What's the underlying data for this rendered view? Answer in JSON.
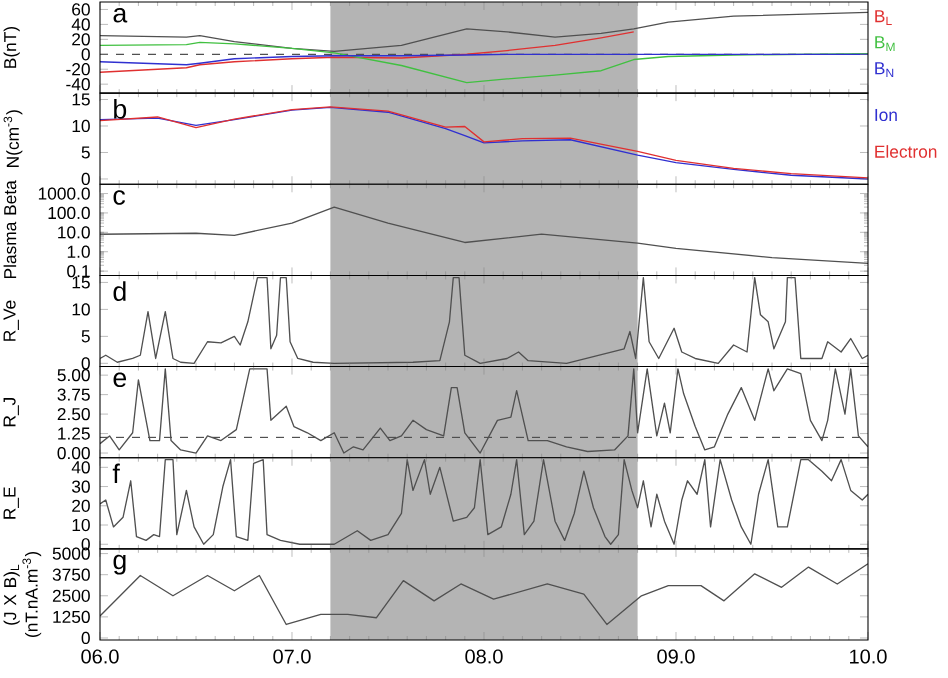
{
  "chart_data": [
    {
      "type": "line",
      "title": "a",
      "ylabel": "B(nT)",
      "legend": "right",
      "tick_labels": "y",
      "x": [
        6.0,
        6.45,
        6.52,
        6.7,
        7.0,
        7.22,
        7.57,
        7.91,
        8.12,
        8.37,
        8.61,
        8.78,
        8.96,
        9.3,
        10.0
      ],
      "series": [
        {
          "color": "#505050",
          "values": [
            25,
            23,
            25,
            17,
            8,
            4,
            12,
            34,
            30,
            23,
            28,
            34,
            43,
            51,
            56
          ]
        },
        {
          "name": "B$_{L}$",
          "color": "#e03030",
          "values": [
            -24,
            -18,
            -14,
            -10,
            -6,
            -4,
            -5,
            0,
            5,
            12,
            22,
            30,
            null,
            null,
            null
          ]
        },
        {
          "name": "B$_{M}$",
          "color": "#40c040",
          "values": [
            12,
            13,
            16,
            14,
            8,
            2,
            -15,
            -38,
            -33,
            -28,
            -22,
            -7,
            -3,
            -1,
            1
          ]
        },
        {
          "name": "B$_{N}$",
          "color": "#3030d0",
          "values": [
            -10,
            -14,
            -12,
            -6,
            -3,
            -2,
            -2,
            -1,
            0,
            0,
            0,
            0,
            0,
            0,
            0
          ]
        }
      ],
      "xlim": [
        6,
        10
      ],
      "xticks": [
        6,
        7,
        8,
        9,
        10
      ],
      "ylim": [
        -52,
        70
      ],
      "yticks": [
        -40,
        -20,
        0,
        20,
        40,
        60
      ],
      "bands": [
        {
          "axis": "x",
          "from": 7.2,
          "to": 8.8,
          "color": "#b4b4b4"
        }
      ],
      "ref_lines": [
        {
          "axis": "y",
          "value": 0,
          "color": "#505050",
          "line_style": "dashed"
        }
      ]
    },
    {
      "type": "line",
      "title": "b",
      "ylabel": "N(cm$^{-3}$)",
      "legend": "right",
      "tick_labels": "y",
      "x": [
        6.0,
        6.3,
        6.5,
        6.7,
        7.0,
        7.2,
        7.5,
        7.8,
        7.9,
        8.0,
        8.2,
        8.45,
        8.8,
        9.0,
        9.3,
        9.6,
        10.0
      ],
      "series": [
        {
          "name": "Ion",
          "color": "#3030d0",
          "values": [
            11.2,
            11.5,
            10.1,
            11.2,
            13.0,
            13.5,
            12.6,
            9.5,
            8.2,
            6.8,
            7.2,
            7.4,
            4.5,
            3.1,
            1.8,
            0.7,
            0.0
          ]
        },
        {
          "name": "Electron",
          "color": "#e03030",
          "values": [
            11.0,
            11.7,
            9.7,
            11.3,
            13.1,
            13.6,
            12.8,
            9.8,
            9.9,
            7.0,
            7.6,
            7.7,
            5.2,
            3.5,
            2.0,
            1.0,
            0.2
          ]
        }
      ],
      "xlim": [
        6,
        10
      ],
      "xticks": [
        6,
        7,
        8,
        9,
        10
      ],
      "ylim": [
        -1,
        16.2
      ],
      "yticks": [
        0,
        5,
        10,
        15
      ],
      "bands": [
        {
          "axis": "x",
          "from": 7.2,
          "to": 8.8,
          "color": "#b4b4b4"
        }
      ]
    },
    {
      "type": "line",
      "title": "c",
      "ylabel": "Plasma Beta",
      "log": "y",
      "tick_labels": "y",
      "x": [
        6.0,
        6.5,
        6.7,
        7.0,
        7.22,
        7.5,
        7.9,
        8.3,
        8.8,
        9.0,
        9.5,
        10.0
      ],
      "series": [
        {
          "color": "#505050",
          "values": [
            8,
            9,
            7,
            30,
            200,
            30,
            3,
            8,
            2.8,
            1.5,
            0.5,
            0.25
          ]
        }
      ],
      "xlim": [
        6,
        10
      ],
      "xticks": [
        6,
        7,
        8,
        9,
        10
      ],
      "ylim": [
        0.06,
        3000
      ],
      "yticks": [
        {
          "value": 0.1,
          "label": "0.1"
        },
        {
          "value": 1,
          "label": "1.0"
        },
        {
          "value": 10,
          "label": "10.0"
        },
        {
          "value": 100,
          "label": "100.0"
        },
        {
          "value": 1000,
          "label": "1000.0"
        }
      ],
      "bands": [
        {
          "axis": "x",
          "from": 7.2,
          "to": 8.8,
          "color": "#b4b4b4"
        }
      ]
    },
    {
      "type": "line",
      "title": "d",
      "ylabel": "R_Ve",
      "tick_labels": "y",
      "x": [
        6.0,
        6.03,
        6.09,
        6.17,
        6.21,
        6.25,
        6.29,
        6.34,
        6.38,
        6.42,
        6.49,
        6.56,
        6.63,
        6.7,
        6.73,
        6.77,
        6.82,
        6.87,
        6.89,
        6.92,
        6.94,
        6.97,
        6.99,
        7.03,
        7.11,
        7.22,
        7.63,
        7.77,
        7.82,
        7.84,
        7.87,
        7.9,
        7.98,
        8.12,
        8.18,
        8.23,
        8.43,
        8.73,
        8.76,
        8.79,
        8.83,
        8.86,
        8.91,
        8.99,
        9.03,
        9.1,
        9.22,
        9.3,
        9.37,
        9.41,
        9.44,
        9.48,
        9.51,
        9.57,
        9.58,
        9.62,
        9.65,
        9.76,
        9.79,
        9.86,
        9.91,
        9.97,
        10.0
      ],
      "series": [
        {
          "color": "#505050",
          "values": [
            0.9,
            1.5,
            0.2,
            0.9,
            1.5,
            9.6,
            0.9,
            9.6,
            0.9,
            0.2,
            0,
            4.0,
            3.8,
            5.0,
            3.4,
            7.7,
            15.9,
            15.9,
            2.7,
            5.2,
            15.9,
            15.9,
            4.0,
            0.9,
            0.2,
            0,
            0.2,
            0.5,
            7.7,
            15.9,
            15.9,
            1.5,
            0,
            0.9,
            2.1,
            0.5,
            0,
            2.7,
            5.9,
            0.9,
            15.9,
            4.0,
            0.9,
            6.5,
            2.1,
            0.9,
            0,
            3.4,
            2.1,
            15.9,
            9.0,
            7.7,
            2.7,
            7.7,
            15.9,
            15.9,
            0.9,
            0.9,
            4.0,
            2.1,
            4.6,
            0.9,
            1.5
          ]
        }
      ],
      "xlim": [
        6,
        10
      ],
      "xticks": [
        6,
        7,
        8,
        9,
        10
      ],
      "ylim": [
        -0.6,
        16.3
      ],
      "yticks": [
        0,
        5,
        10,
        15
      ],
      "bands": [
        {
          "axis": "x",
          "from": 7.2,
          "to": 8.8,
          "color": "#b4b4b4"
        }
      ]
    },
    {
      "type": "line",
      "title": "e",
      "ylabel": "R_J",
      "tick_labels": "y",
      "x": [
        6.0,
        6.05,
        6.1,
        6.17,
        6.2,
        6.26,
        6.31,
        6.34,
        6.37,
        6.42,
        6.5,
        6.56,
        6.63,
        6.71,
        6.78,
        6.87,
        6.89,
        6.97,
        7.01,
        7.08,
        7.15,
        7.22,
        7.27,
        7.32,
        7.37,
        7.46,
        7.51,
        7.57,
        7.63,
        7.7,
        7.79,
        7.83,
        7.86,
        7.9,
        7.98,
        8.07,
        8.14,
        8.17,
        8.23,
        8.33,
        8.43,
        8.54,
        8.68,
        8.75,
        8.78,
        8.8,
        8.85,
        8.9,
        8.94,
        8.97,
        9.01,
        9.04,
        9.1,
        9.15,
        9.2,
        9.27,
        9.34,
        9.41,
        9.48,
        9.51,
        9.58,
        9.65,
        9.7,
        9.76,
        9.79,
        9.83,
        9.88,
        9.91,
        9.95,
        10.0
      ],
      "series": [
        {
          "color": "#505050",
          "values": [
            0.6,
            1.1,
            0.2,
            1.3,
            4.7,
            0.8,
            0.8,
            5.4,
            0.8,
            0.2,
            0,
            1.1,
            0.8,
            1.5,
            5.4,
            5.4,
            2.1,
            3.0,
            1.7,
            1.3,
            0.8,
            1.3,
            0,
            0.4,
            0.2,
            1.6,
            0.8,
            1.1,
            2.1,
            1.5,
            1.1,
            4.2,
            4.2,
            1.3,
            0,
            2.1,
            2.3,
            4.0,
            0.8,
            0.8,
            0.4,
            0.1,
            0.2,
            1.1,
            5.4,
            1.3,
            5.4,
            1.1,
            3.2,
            1.3,
            5.4,
            3.8,
            1.7,
            0.2,
            0.4,
            2.5,
            4.2,
            2.1,
            5.4,
            4.0,
            5.4,
            5.1,
            2.1,
            0.8,
            2.1,
            5.4,
            2.5,
            5.4,
            1.1,
            0.4
          ]
        }
      ],
      "xlim": [
        6,
        10
      ],
      "xticks": [
        6,
        7,
        8,
        9,
        10
      ],
      "ylim": [
        -0.3,
        5.55
      ],
      "yticks": [
        {
          "value": 0,
          "label": "0.00"
        },
        {
          "value": 1.25,
          "label": "1.25"
        },
        {
          "value": 2.5,
          "label": "2.50"
        },
        {
          "value": 3.75,
          "label": "3.75"
        },
        {
          "value": 5,
          "label": "5.00"
        }
      ],
      "bands": [
        {
          "axis": "x",
          "from": 7.2,
          "to": 8.8,
          "color": "#b4b4b4"
        }
      ],
      "ref_lines": [
        {
          "axis": "y",
          "value": 1,
          "color": "#505050",
          "line_style": "dashed"
        }
      ]
    },
    {
      "type": "line",
      "title": "f",
      "ylabel": "R_E",
      "tick_labels": "y",
      "x": [
        6.0,
        6.03,
        6.07,
        6.12,
        6.16,
        6.19,
        6.24,
        6.28,
        6.31,
        6.34,
        6.38,
        6.4,
        6.45,
        6.49,
        6.54,
        6.59,
        6.64,
        6.68,
        6.71,
        6.77,
        6.8,
        6.85,
        6.87,
        6.94,
        7.04,
        7.22,
        7.34,
        7.41,
        7.5,
        7.57,
        7.6,
        7.63,
        7.69,
        7.72,
        7.77,
        7.84,
        7.91,
        7.95,
        7.98,
        8.02,
        8.09,
        8.14,
        8.17,
        8.21,
        8.26,
        8.31,
        8.37,
        8.42,
        8.47,
        8.52,
        8.57,
        8.63,
        8.66,
        8.7,
        8.73,
        8.77,
        8.8,
        8.83,
        8.87,
        8.9,
        8.94,
        8.99,
        9.03,
        9.06,
        9.11,
        9.15,
        9.18,
        9.23,
        9.29,
        9.34,
        9.39,
        9.43,
        9.48,
        9.53,
        9.58,
        9.65,
        9.69,
        9.76,
        9.81,
        9.86,
        9.91,
        9.97,
        10.0
      ],
      "series": [
        {
          "color": "#505050",
          "values": [
            21,
            23,
            9,
            14,
            33,
            4,
            2,
            5,
            4,
            44,
            44,
            5,
            28,
            9,
            0,
            5,
            30,
            44,
            4,
            2,
            42,
            44,
            5,
            2,
            0,
            0,
            7,
            2,
            5,
            16,
            44,
            28,
            44,
            26,
            40,
            12,
            14,
            19,
            44,
            5,
            9,
            26,
            44,
            5,
            12,
            44,
            12,
            2,
            16,
            38,
            19,
            4,
            0,
            5,
            44,
            28,
            19,
            33,
            9,
            26,
            12,
            0,
            23,
            33,
            26,
            44,
            9,
            44,
            23,
            9,
            0,
            26,
            44,
            9,
            9,
            44,
            44,
            38,
            33,
            44,
            28,
            23,
            26
          ]
        }
      ],
      "xlim": [
        6,
        10
      ],
      "xticks": [
        6,
        7,
        8,
        9,
        10
      ],
      "ylim": [
        -2.4,
        45
      ],
      "yticks": [
        0,
        10,
        20,
        30,
        40
      ],
      "bands": [
        {
          "axis": "x",
          "from": 7.2,
          "to": 8.8,
          "color": "#b4b4b4"
        }
      ]
    },
    {
      "type": "line",
      "title": "g",
      "ylabel": "(J X B)$_{L}$ (nT.nA.m$^{-3}$)",
      "x": [
        6.0,
        6.21,
        6.38,
        6.56,
        6.7,
        6.83,
        6.97,
        7.15,
        7.29,
        7.44,
        7.58,
        7.74,
        7.88,
        8.05,
        8.33,
        8.52,
        8.64,
        8.82,
        8.96,
        9.13,
        9.25,
        9.41,
        9.55,
        9.69,
        9.84,
        10.0
      ],
      "series": [
        {
          "color": "#505050",
          "values": [
            1300,
            3700,
            2500,
            3700,
            2800,
            3700,
            800,
            1400,
            1400,
            1200,
            3400,
            2200,
            3200,
            2300,
            3200,
            2600,
            800,
            2500,
            3100,
            3100,
            2200,
            3800,
            3000,
            4200,
            3200,
            4400
          ]
        }
      ],
      "xlim": [
        6,
        10
      ],
      "xticks": [
        {
          "value": 6,
          "label": "06.0"
        },
        {
          "value": 7,
          "label": "07.0"
        },
        {
          "value": 8,
          "label": "08.0"
        },
        {
          "value": 9,
          "label": "09.0"
        },
        {
          "value": 10,
          "label": "10.0"
        }
      ],
      "ylim": [
        -120,
        5280
      ],
      "yticks": [
        0,
        1250,
        2500,
        3750,
        5000
      ],
      "bands": [
        {
          "axis": "x",
          "from": 7.2,
          "to": 8.8,
          "color": "#b4b4b4"
        }
      ]
    }
  ]
}
